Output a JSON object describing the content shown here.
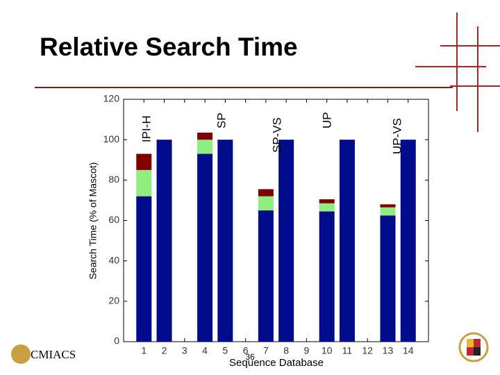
{
  "chart_data": {
    "type": "stacked-bar",
    "title": "Relative Search Time",
    "y_label": "Search Time (% of Mascot)",
    "x_label": "Sequence Database",
    "x": [
      1,
      2,
      3,
      4,
      5,
      6,
      7,
      8,
      9,
      10,
      11,
      12,
      13,
      14
    ],
    "xlim": [
      0,
      15
    ],
    "xticks": [
      1,
      2,
      3,
      4,
      5,
      6,
      7,
      8,
      9,
      10,
      11,
      12,
      13,
      14
    ],
    "ylim": [
      0,
      120
    ],
    "yticks": [
      0,
      20,
      40,
      60,
      80,
      100,
      120
    ],
    "series": [
      {
        "color": "#000c8c",
        "values": [
          72,
          100,
          null,
          93,
          100,
          null,
          65,
          100,
          null,
          64.5,
          100,
          null,
          62.5,
          100
        ]
      },
      {
        "color": "#90ee80",
        "values": [
          13,
          null,
          null,
          7,
          null,
          null,
          7,
          null,
          null,
          4,
          null,
          null,
          4,
          null
        ]
      },
      {
        "color": "#7f0000",
        "values": [
          8,
          null,
          null,
          3.5,
          null,
          null,
          3.5,
          null,
          null,
          2,
          null,
          null,
          1.5,
          null
        ]
      }
    ],
    "annotations": [
      "IPI-H",
      "SP",
      "SP-VS",
      "UP",
      "UP-VS"
    ],
    "page_number": "36",
    "logo_text": "CMIACS"
  }
}
